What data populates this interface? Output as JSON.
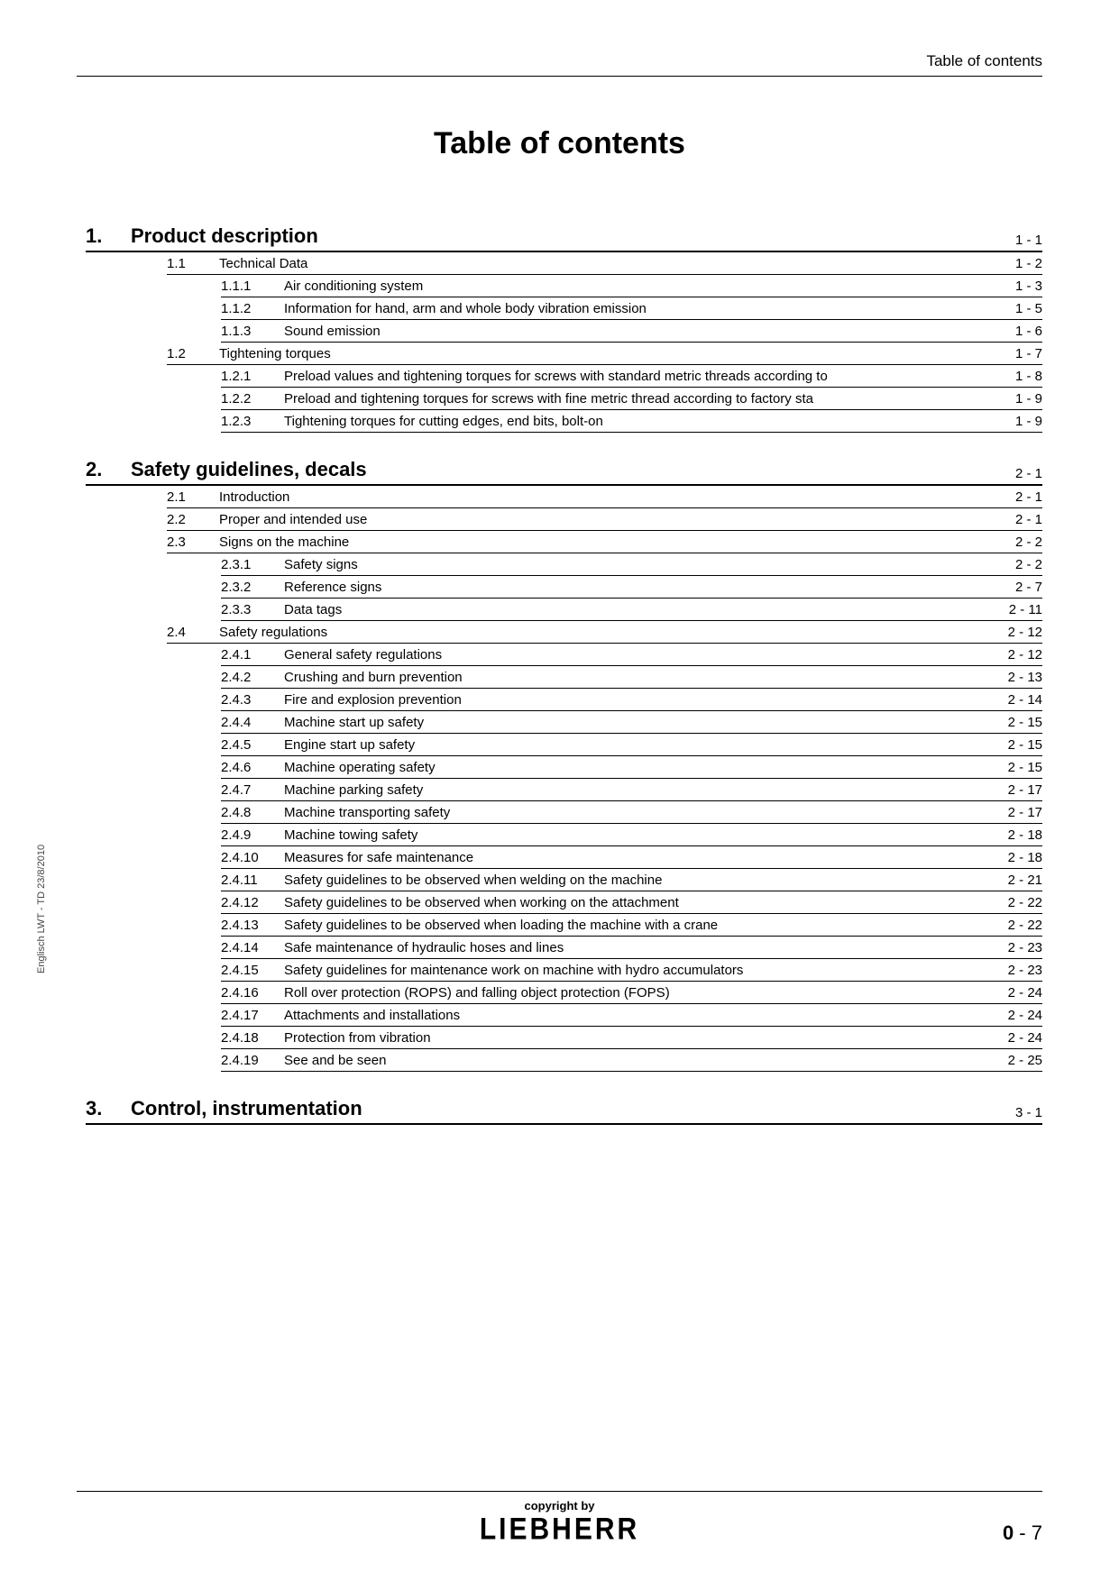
{
  "header_label": "Table of contents",
  "main_title": "Table of contents",
  "side_text": "Englisch  LWT - TD 23/8/2010",
  "copyright": "copyright by",
  "brand": "LIEBHERR",
  "page_prefix": "0",
  "page_sep": " - ",
  "page_num": "7",
  "colors": {
    "text": "#000000",
    "background": "#ffffff",
    "rule": "#000000"
  },
  "typography": {
    "body_family": "Arial, Helvetica, sans-serif",
    "main_title_size": 34,
    "section_size": 22,
    "row_size": 15,
    "header_label_size": 17
  },
  "sections": [
    {
      "num": "1.",
      "title": "Product description",
      "page": "1 - 1",
      "children": [
        {
          "num": "1.1",
          "title": "Technical Data",
          "page": "1 - 2",
          "level": 1,
          "children": [
            {
              "num": "1.1.1",
              "title": "Air conditioning system",
              "page": "1 - 3",
              "level": 2
            },
            {
              "num": "1.1.2",
              "title": "Information for hand, arm and whole body vibration emission",
              "page": "1 - 5",
              "level": 2
            },
            {
              "num": "1.1.3",
              "title": "Sound emission",
              "page": "1 - 6",
              "level": 2
            }
          ]
        },
        {
          "num": "1.2",
          "title": "Tightening torques",
          "page": "1 - 7",
          "level": 1,
          "children": [
            {
              "num": "1.2.1",
              "title": "Preload values and tightening torques for screws with standard metric threads according to",
              "page": "1 - 8",
              "level": 2
            },
            {
              "num": "1.2.2",
              "title": "Preload and tightening torques for screws with fine metric thread according to factory sta",
              "page": "1 - 9",
              "level": 2
            },
            {
              "num": "1.2.3",
              "title": "Tightening torques for cutting edges, end bits, bolt-on",
              "page": "1 - 9",
              "level": 2
            }
          ]
        }
      ]
    },
    {
      "num": "2.",
      "title": "Safety guidelines, decals",
      "page": "2 - 1",
      "children": [
        {
          "num": "2.1",
          "title": "Introduction",
          "page": "2 - 1",
          "level": 1
        },
        {
          "num": "2.2",
          "title": "Proper and intended use",
          "page": "2 - 1",
          "level": 1
        },
        {
          "num": "2.3",
          "title": "Signs on the machine",
          "page": "2 - 2",
          "level": 1,
          "children": [
            {
              "num": "2.3.1",
              "title": "Safety signs",
              "page": "2 - 2",
              "level": 2
            },
            {
              "num": "2.3.2",
              "title": "Reference signs",
              "page": "2 - 7",
              "level": 2
            },
            {
              "num": "2.3.3",
              "title": "Data tags",
              "page": "2 - 11",
              "level": 2
            }
          ]
        },
        {
          "num": "2.4",
          "title": "Safety regulations",
          "page": "2 - 12",
          "level": 1,
          "children": [
            {
              "num": "2.4.1",
              "title": "General safety regulations",
              "page": "2 - 12",
              "level": 2
            },
            {
              "num": "2.4.2",
              "title": "Crushing and burn prevention",
              "page": "2 - 13",
              "level": 2
            },
            {
              "num": "2.4.3",
              "title": "Fire and explosion prevention",
              "page": "2 - 14",
              "level": 2
            },
            {
              "num": "2.4.4",
              "title": "Machine start up safety",
              "page": "2 - 15",
              "level": 2
            },
            {
              "num": "2.4.5",
              "title": "Engine start up safety",
              "page": "2 - 15",
              "level": 2
            },
            {
              "num": "2.4.6",
              "title": "Machine operating safety",
              "page": "2 - 15",
              "level": 2
            },
            {
              "num": "2.4.7",
              "title": "Machine parking safety",
              "page": "2 - 17",
              "level": 2
            },
            {
              "num": "2.4.8",
              "title": "Machine transporting safety",
              "page": "2 - 17",
              "level": 2
            },
            {
              "num": "2.4.9",
              "title": "Machine towing safety",
              "page": "2 - 18",
              "level": 2
            },
            {
              "num": "2.4.10",
              "title": "Measures for safe maintenance",
              "page": "2 - 18",
              "level": 2
            },
            {
              "num": "2.4.11",
              "title": "Safety guidelines to be observed when welding on the machine",
              "page": "2 - 21",
              "level": 2
            },
            {
              "num": "2.4.12",
              "title": "Safety guidelines to be observed when working on the attachment",
              "page": "2 - 22",
              "level": 2
            },
            {
              "num": "2.4.13",
              "title": "Safety guidelines to be observed when loading the machine with a crane",
              "page": "2 - 22",
              "level": 2
            },
            {
              "num": "2.4.14",
              "title": "Safe maintenance of hydraulic hoses and lines",
              "page": "2 - 23",
              "level": 2
            },
            {
              "num": "2.4.15",
              "title": "Safety guidelines for maintenance work on machine with hydro accumulators",
              "page": "2 - 23",
              "level": 2
            },
            {
              "num": "2.4.16",
              "title": "Roll over protection (ROPS) and falling object protection (FOPS)",
              "page": "2 - 24",
              "level": 2
            },
            {
              "num": "2.4.17",
              "title": "Attachments and installations",
              "page": "2 - 24",
              "level": 2
            },
            {
              "num": "2.4.18",
              "title": "Protection from vibration",
              "page": "2 - 24",
              "level": 2
            },
            {
              "num": "2.4.19",
              "title": "See and be seen",
              "page": "2 - 25",
              "level": 2
            }
          ]
        }
      ]
    },
    {
      "num": "3.",
      "title": "Control, instrumentation",
      "page": "3 - 1",
      "children": []
    }
  ]
}
